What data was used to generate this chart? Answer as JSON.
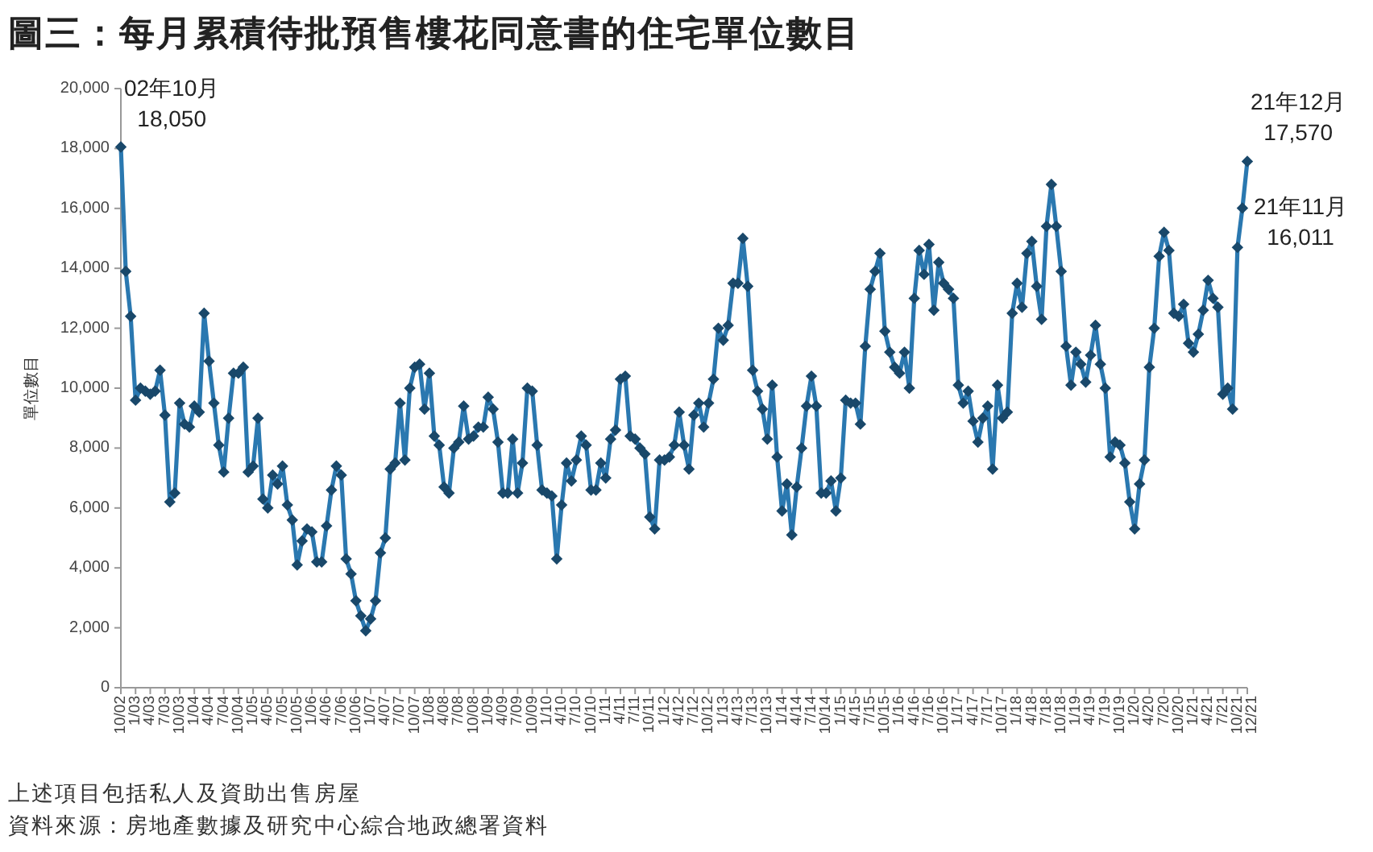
{
  "chart_data": {
    "type": "line",
    "title": "圖三：每月累積待批預售樓花同意書的住宅單位數目",
    "ylabel": "單位數目",
    "x": [
      "2002-10",
      "2002-11",
      "2002-12",
      "2003-01",
      "2003-02",
      "2003-03",
      "2003-04",
      "2003-05",
      "2003-06",
      "2003-07",
      "2003-08",
      "2003-09",
      "2003-10",
      "2003-11",
      "2003-12",
      "2004-01",
      "2004-02",
      "2004-03",
      "2004-04",
      "2004-05",
      "2004-06",
      "2004-07",
      "2004-08",
      "2004-09",
      "2004-10",
      "2004-11",
      "2004-12",
      "2005-01",
      "2005-02",
      "2005-03",
      "2005-04",
      "2005-05",
      "2005-06",
      "2005-07",
      "2005-08",
      "2005-09",
      "2005-10",
      "2005-11",
      "2005-12",
      "2006-01",
      "2006-02",
      "2006-03",
      "2006-04",
      "2006-05",
      "2006-06",
      "2006-07",
      "2006-08",
      "2006-09",
      "2006-10",
      "2006-11",
      "2006-12",
      "2007-01",
      "2007-02",
      "2007-03",
      "2007-04",
      "2007-05",
      "2007-06",
      "2007-07",
      "2007-08",
      "2007-09",
      "2007-10",
      "2007-11",
      "2007-12",
      "2008-01",
      "2008-02",
      "2008-03",
      "2008-04",
      "2008-05",
      "2008-06",
      "2008-07",
      "2008-08",
      "2008-09",
      "2008-10",
      "2008-11",
      "2008-12",
      "2009-01",
      "2009-02",
      "2009-03",
      "2009-04",
      "2009-05",
      "2009-06",
      "2009-07",
      "2009-08",
      "2009-09",
      "2009-10",
      "2009-11",
      "2009-12",
      "2010-01",
      "2010-02",
      "2010-03",
      "2010-04",
      "2010-05",
      "2010-06",
      "2010-07",
      "2010-08",
      "2010-09",
      "2010-10",
      "2010-11",
      "2010-12",
      "2011-01",
      "2011-02",
      "2011-03",
      "2011-04",
      "2011-05",
      "2011-06",
      "2011-07",
      "2011-08",
      "2011-09",
      "2011-10",
      "2011-11",
      "2011-12",
      "2012-01",
      "2012-02",
      "2012-03",
      "2012-04",
      "2012-05",
      "2012-06",
      "2012-07",
      "2012-08",
      "2012-09",
      "2012-10",
      "2012-11",
      "2012-12",
      "2013-01",
      "2013-02",
      "2013-03",
      "2013-04",
      "2013-05",
      "2013-06",
      "2013-07",
      "2013-08",
      "2013-09",
      "2013-10",
      "2013-11",
      "2013-12",
      "2014-01",
      "2014-02",
      "2014-03",
      "2014-04",
      "2014-05",
      "2014-06",
      "2014-07",
      "2014-08",
      "2014-09",
      "2014-10",
      "2014-11",
      "2014-12",
      "2015-01",
      "2015-02",
      "2015-03",
      "2015-04",
      "2015-05",
      "2015-06",
      "2015-07",
      "2015-08",
      "2015-09",
      "2015-10",
      "2015-11",
      "2015-12",
      "2016-01",
      "2016-02",
      "2016-03",
      "2016-04",
      "2016-05",
      "2016-06",
      "2016-07",
      "2016-08",
      "2016-09",
      "2016-10",
      "2016-11",
      "2016-12",
      "2017-01",
      "2017-02",
      "2017-03",
      "2017-04",
      "2017-05",
      "2017-06",
      "2017-07",
      "2017-08",
      "2017-09",
      "2017-10",
      "2017-11",
      "2017-12",
      "2018-01",
      "2018-02",
      "2018-03",
      "2018-04",
      "2018-05",
      "2018-06",
      "2018-07",
      "2018-08",
      "2018-09",
      "2018-10",
      "2018-11",
      "2018-12",
      "2019-01",
      "2019-02",
      "2019-03",
      "2019-04",
      "2019-05",
      "2019-06",
      "2019-07",
      "2019-08",
      "2019-09",
      "2019-10",
      "2019-11",
      "2019-12",
      "2020-01",
      "2020-02",
      "2020-03",
      "2020-04",
      "2020-05",
      "2020-06",
      "2020-07",
      "2020-08",
      "2020-09",
      "2020-10",
      "2020-11",
      "2020-12",
      "2021-01",
      "2021-02",
      "2021-03",
      "2021-04",
      "2021-05",
      "2021-06",
      "2021-07",
      "2021-08",
      "2021-09",
      "2021-10",
      "2021-11",
      "2021-12"
    ],
    "series": [
      {
        "color": "#2a78b0",
        "values": [
          18050,
          13900,
          12400,
          9600,
          10000,
          9900,
          9800,
          9900,
          10600,
          9100,
          6200,
          6500,
          9500,
          8800,
          8700,
          9400,
          9200,
          12500,
          10900,
          9500,
          8100,
          7200,
          9000,
          10500,
          10500,
          10700,
          7200,
          7400,
          9000,
          6300,
          6000,
          7100,
          6800,
          7400,
          6100,
          5600,
          4100,
          4900,
          5300,
          5200,
          4200,
          4200,
          5400,
          6600,
          7400,
          7100,
          4300,
          3800,
          2900,
          2400,
          1900,
          2300,
          2900,
          4500,
          5000,
          7300,
          7500,
          9500,
          7600,
          10000,
          10700,
          10800,
          9300,
          10500,
          8400,
          8100,
          6700,
          6500,
          8000,
          8200,
          9400,
          8300,
          8400,
          8700,
          8700,
          9700,
          9300,
          8200,
          6500,
          6500,
          8300,
          6500,
          7500,
          10000,
          9900,
          8100,
          6600,
          6500,
          6400,
          4300,
          6100,
          7500,
          6900,
          7600,
          8400,
          8100,
          6600,
          6600,
          7500,
          7000,
          8300,
          8600,
          10300,
          10400,
          8400,
          8300,
          8000,
          7800,
          5700,
          5300,
          7600,
          7600,
          7700,
          8100,
          9200,
          8100,
          7300,
          9100,
          9500,
          8700,
          9500,
          10300,
          12000,
          11600,
          12100,
          13500,
          13500,
          15000,
          13400,
          10600,
          9900,
          9300,
          8300,
          10100,
          7700,
          5900,
          6800,
          5100,
          6700,
          8000,
          9400,
          10400,
          9400,
          6500,
          6500,
          6900,
          5900,
          7000,
          9600,
          9500,
          9500,
          8800,
          11400,
          13300,
          13900,
          14500,
          11900,
          11200,
          10700,
          10500,
          11200,
          10000,
          13000,
          14600,
          13800,
          14800,
          12600,
          14200,
          13500,
          13300,
          13000,
          10100,
          9500,
          9900,
          8900,
          8200,
          9000,
          9400,
          7300,
          10100,
          9000,
          9200,
          12500,
          13500,
          12700,
          14500,
          14900,
          13400,
          12300,
          15400,
          16800,
          15400,
          13900,
          11400,
          10100,
          11200,
          10800,
          10200,
          11100,
          12100,
          10800,
          10000,
          7700,
          8200,
          8100,
          7500,
          6200,
          5300,
          6800,
          7600,
          10700,
          12000,
          14400,
          15200,
          14600,
          12500,
          12400,
          12800,
          11500,
          11200,
          11800,
          12600,
          13600,
          13000,
          12700,
          9800,
          10000,
          9300,
          14700,
          16011,
          17570
        ]
      }
    ],
    "xlim": [
      "2002-10",
      "2021-12"
    ],
    "ylim": [
      0,
      20000
    ],
    "xticks": [
      {
        "value": "2002-10",
        "label": "10/02"
      },
      {
        "value": "2003-01",
        "label": "1/03"
      },
      {
        "value": "2003-04",
        "label": "4/03"
      },
      {
        "value": "2003-07",
        "label": "7/03"
      },
      {
        "value": "2003-10",
        "label": "10/03"
      },
      {
        "value": "2004-01",
        "label": "1/04"
      },
      {
        "value": "2004-04",
        "label": "4/04"
      },
      {
        "value": "2004-07",
        "label": "7/04"
      },
      {
        "value": "2004-10",
        "label": "10/04"
      },
      {
        "value": "2005-01",
        "label": "1/05"
      },
      {
        "value": "2005-04",
        "label": "4/05"
      },
      {
        "value": "2005-07",
        "label": "7/05"
      },
      {
        "value": "2005-10",
        "label": "10/05"
      },
      {
        "value": "2006-01",
        "label": "1/06"
      },
      {
        "value": "2006-04",
        "label": "4/06"
      },
      {
        "value": "2006-07",
        "label": "7/06"
      },
      {
        "value": "2006-10",
        "label": "10/06"
      },
      {
        "value": "2007-01",
        "label": "1/07"
      },
      {
        "value": "2007-04",
        "label": "4/07"
      },
      {
        "value": "2007-07",
        "label": "7/07"
      },
      {
        "value": "2007-10",
        "label": "10/07"
      },
      {
        "value": "2008-01",
        "label": "1/08"
      },
      {
        "value": "2008-04",
        "label": "4/08"
      },
      {
        "value": "2008-07",
        "label": "7/08"
      },
      {
        "value": "2008-10",
        "label": "10/08"
      },
      {
        "value": "2009-01",
        "label": "1/09"
      },
      {
        "value": "2009-04",
        "label": "4/09"
      },
      {
        "value": "2009-07",
        "label": "7/09"
      },
      {
        "value": "2009-10",
        "label": "10/09"
      },
      {
        "value": "2010-01",
        "label": "1/10"
      },
      {
        "value": "2010-04",
        "label": "4/10"
      },
      {
        "value": "2010-07",
        "label": "7/10"
      },
      {
        "value": "2010-10",
        "label": "10/10"
      },
      {
        "value": "2011-01",
        "label": "1/11"
      },
      {
        "value": "2011-04",
        "label": "4/11"
      },
      {
        "value": "2011-07",
        "label": "7/11"
      },
      {
        "value": "2011-10",
        "label": "10/11"
      },
      {
        "value": "2012-01",
        "label": "1/12"
      },
      {
        "value": "2012-04",
        "label": "4/12"
      },
      {
        "value": "2012-07",
        "label": "7/12"
      },
      {
        "value": "2012-10",
        "label": "10/12"
      },
      {
        "value": "2013-01",
        "label": "1/13"
      },
      {
        "value": "2013-04",
        "label": "4/13"
      },
      {
        "value": "2013-07",
        "label": "7/13"
      },
      {
        "value": "2013-10",
        "label": "10/13"
      },
      {
        "value": "2014-01",
        "label": "1/14"
      },
      {
        "value": "2014-04",
        "label": "4/14"
      },
      {
        "value": "2014-07",
        "label": "7/14"
      },
      {
        "value": "2014-10",
        "label": "10/14"
      },
      {
        "value": "2015-01",
        "label": "1/15"
      },
      {
        "value": "2015-04",
        "label": "4/15"
      },
      {
        "value": "2015-07",
        "label": "7/15"
      },
      {
        "value": "2015-10",
        "label": "10/15"
      },
      {
        "value": "2016-01",
        "label": "1/16"
      },
      {
        "value": "2016-04",
        "label": "4/16"
      },
      {
        "value": "2016-07",
        "label": "7/16"
      },
      {
        "value": "2016-10",
        "label": "10/16"
      },
      {
        "value": "2017-01",
        "label": "1/17"
      },
      {
        "value": "2017-04",
        "label": "4/17"
      },
      {
        "value": "2017-07",
        "label": "7/17"
      },
      {
        "value": "2017-10",
        "label": "10/17"
      },
      {
        "value": "2018-01",
        "label": "1/18"
      },
      {
        "value": "2018-04",
        "label": "4/18"
      },
      {
        "value": "2018-07",
        "label": "7/18"
      },
      {
        "value": "2018-10",
        "label": "10/18"
      },
      {
        "value": "2019-01",
        "label": "1/19"
      },
      {
        "value": "2019-04",
        "label": "4/19"
      },
      {
        "value": "2019-07",
        "label": "7/19"
      },
      {
        "value": "2019-10",
        "label": "10/19"
      },
      {
        "value": "2020-01",
        "label": "1/20"
      },
      {
        "value": "2020-04",
        "label": "4/20"
      },
      {
        "value": "2020-07",
        "label": "7/20"
      },
      {
        "value": "2020-10",
        "label": "10/20"
      },
      {
        "value": "2021-01",
        "label": "1/21"
      },
      {
        "value": "2021-04",
        "label": "4/21"
      },
      {
        "value": "2021-07",
        "label": "7/21"
      },
      {
        "value": "2021-10",
        "label": "10/21"
      },
      {
        "value": "2021-12",
        "label": "12/21"
      }
    ],
    "yticks": [
      0,
      {
        "value": 2000,
        "label": "2,000"
      },
      {
        "value": 4000,
        "label": "4,000"
      },
      {
        "value": 6000,
        "label": "6,000"
      },
      {
        "value": 8000,
        "label": "8,000"
      },
      {
        "value": 10000,
        "label": "10,000"
      },
      {
        "value": 12000,
        "label": "12,000"
      },
      {
        "value": 14000,
        "label": "14,000"
      },
      {
        "value": 16000,
        "label": "16,000"
      },
      {
        "value": 18000,
        "label": "18,000"
      },
      {
        "value": 20000,
        "label": "20,000"
      }
    ],
    "marker": "diamond",
    "line_style": "solid",
    "annotations": [
      {
        "text": "02年10月\n18,050",
        "x": "2002-10",
        "y": 18050
      },
      {
        "text": "21年12月\n17,570",
        "x": "2021-12",
        "y": 17570
      },
      {
        "text": "21年11月\n16,011",
        "x": "2021-11",
        "y": 16011
      },
      "上述項目包括私人及資助出售房屋",
      "資料來源：房地產數據及研究中心綜合地政總署資料"
    ]
  }
}
